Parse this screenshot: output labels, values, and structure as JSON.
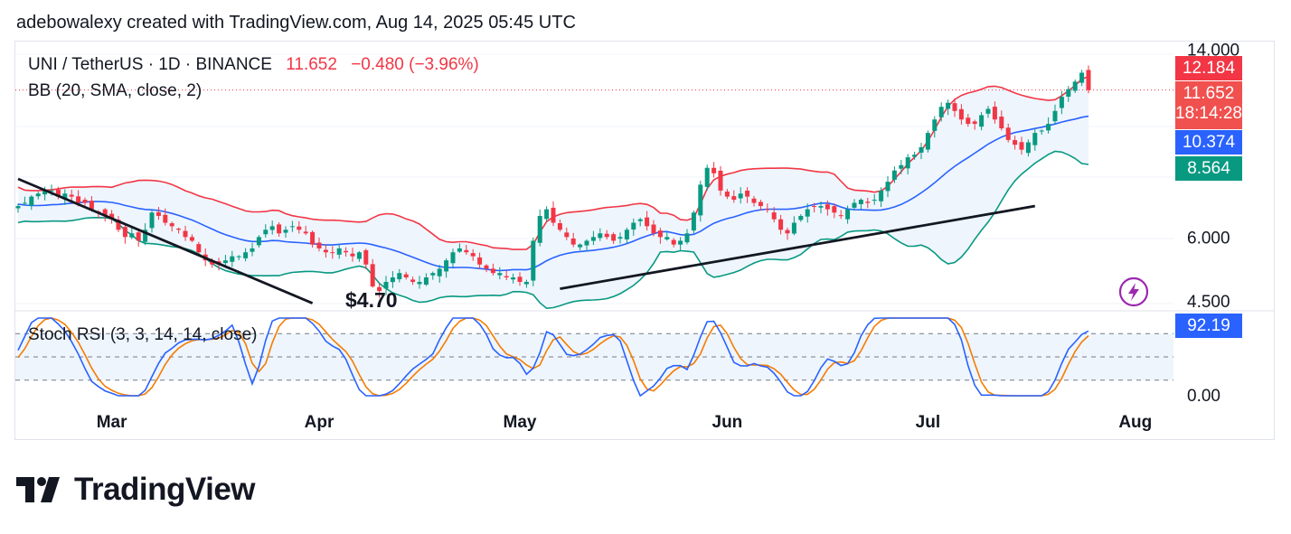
{
  "header": {
    "credit": "adebowalexy created with TradingView.com, Aug 14, 2025 05:45 UTC"
  },
  "legend": {
    "symbol": "UNI / TetherUS · 1D · BINANCE",
    "last_price": "11.652",
    "change": "−0.480 (−3.96%)",
    "bb": "BB (20, SMA, close, 2)",
    "stoch": "Stoch RSI (3, 3, 14, 14, close)"
  },
  "badges": {
    "upper_band": "12.184",
    "price": "11.652",
    "countdown": "18:14:28",
    "basis": "10.374",
    "lower_band": "8.564",
    "stoch_value": "92.19"
  },
  "annotation": {
    "low_label": "$4.70"
  },
  "brand": {
    "name": "TradingView"
  },
  "colors": {
    "up": "#089981",
    "down": "#f23645",
    "bb_upper": "#f23645",
    "bb_basis": "#2962ff",
    "bb_lower": "#089981",
    "bb_fill": "#eef5fd",
    "stoch_k": "#2962ff",
    "stoch_d": "#f57c00",
    "trendline": "#131722"
  },
  "chart_data": {
    "type": "candlestick",
    "price_axis": {
      "scale": "log",
      "ticks": [
        "4.500",
        "6.000",
        "14.000"
      ],
      "ylim": [
        4.3,
        14.5
      ]
    },
    "x_axis": {
      "ticks": [
        "Mar",
        "Apr",
        "May",
        "Jun",
        "Jul",
        "Aug"
      ]
    },
    "close_series": [
      6.9,
      7.0,
      7.2,
      7.3,
      7.4,
      7.4,
      7.2,
      7.3,
      7.2,
      7.0,
      7.0,
      6.8,
      6.7,
      6.6,
      6.5,
      6.2,
      6.0,
      6.1,
      5.9,
      6.2,
      6.7,
      6.6,
      6.4,
      6.3,
      6.2,
      6.0,
      5.9,
      5.6,
      5.4,
      5.3,
      5.3,
      5.4,
      5.5,
      5.5,
      5.6,
      5.7,
      6.0,
      6.2,
      6.3,
      6.1,
      6.2,
      6.3,
      6.2,
      6.1,
      5.8,
      5.7,
      5.6,
      5.6,
      5.7,
      5.6,
      5.5,
      5.6,
      5.3,
      4.8,
      4.7,
      4.9,
      5.0,
      5.1,
      5.0,
      4.9,
      4.9,
      5.0,
      5.1,
      5.2,
      5.4,
      5.6,
      5.7,
      5.6,
      5.5,
      5.3,
      5.2,
      5.1,
      5.1,
      5.0,
      5.0,
      4.9,
      4.9,
      5.9,
      6.6,
      6.8,
      6.4,
      6.2,
      6.0,
      5.8,
      5.8,
      5.9,
      6.0,
      6.1,
      6.0,
      5.9,
      6.0,
      6.2,
      6.4,
      6.5,
      6.3,
      6.1,
      6.0,
      6.0,
      5.8,
      5.9,
      6.1,
      6.7,
      7.6,
      8.2,
      8.0,
      7.4,
      7.2,
      7.1,
      7.3,
      7.2,
      7.0,
      6.9,
      6.8,
      6.5,
      6.2,
      6.1,
      6.4,
      6.6,
      6.8,
      6.9,
      6.9,
      6.8,
      6.7,
      6.6,
      6.8,
      7.0,
      7.1,
      7.0,
      7.1,
      7.4,
      7.7,
      8.1,
      8.3,
      8.6,
      8.7,
      9.0,
      9.6,
      10.2,
      10.8,
      11.0,
      10.6,
      10.2,
      10.0,
      10.0,
      10.4,
      10.7,
      10.2,
      9.8,
      9.3,
      9.1,
      8.9,
      9.2,
      9.6,
      9.7,
      10.0,
      10.6,
      11.3,
      11.7,
      12.1,
      12.6,
      11.65
    ],
    "bollinger": {
      "period": 20,
      "stddev": 2,
      "upper_last": 12.184,
      "basis_last": 10.374,
      "lower_last": 8.564
    },
    "stoch_rsi": {
      "ticks": [
        "0.00"
      ],
      "last": 92.19,
      "bands": [
        20,
        50,
        80
      ]
    },
    "trendlines": [
      {
        "from": [
          "Feb 15",
          7.8
        ],
        "to": [
          "Mar 31",
          4.45
        ]
      },
      {
        "from": [
          "May 7",
          4.75
        ],
        "to": [
          "Jul 17",
          6.9
        ]
      }
    ]
  }
}
